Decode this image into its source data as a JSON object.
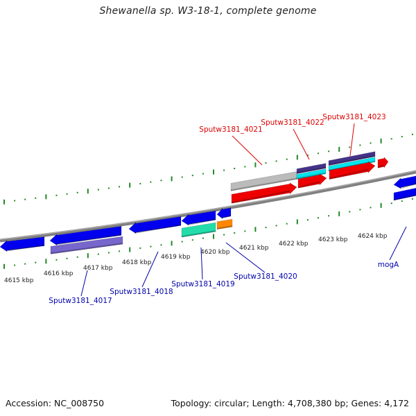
{
  "title": "Shewanella sp. W3-18-1, complete genome",
  "footer": {
    "accession": "Accession: NC_008750",
    "topology": "Topology: circular; Length: 4,708,380 bp; Genes: 4,172"
  },
  "scale_labels": [
    "4615 kbp",
    "4616 kbp",
    "4617 kbp",
    "4618 kbp",
    "4619 kbp",
    "4620 kbp",
    "4621 kbp",
    "4622 kbp",
    "4623 kbp",
    "4624 kbp"
  ],
  "gene_labels": {
    "top": [
      "Sputw3181_4021",
      "Sputw3181_4022",
      "Sputw3181_4023"
    ],
    "bottom": [
      "Sputw3181_4017",
      "Sputw3181_4018",
      "Sputw3181_4019",
      "Sputw3181_4020",
      "mogA"
    ]
  },
  "colors": {
    "backbone": "#808080",
    "forward_gene": "#ee0000",
    "reverse_gene": "#0000ee",
    "purple_feature": "#7766cc",
    "dark_purple_feature": "#443388",
    "cyan_feature": "#00e5ee",
    "mint_feature": "#22ddaa",
    "orange_feature": "#ff8800",
    "gray_feature": "#bbbbbb",
    "tick": "#228822",
    "top_label": "#dd0000",
    "bottom_label": "#0000aa"
  }
}
